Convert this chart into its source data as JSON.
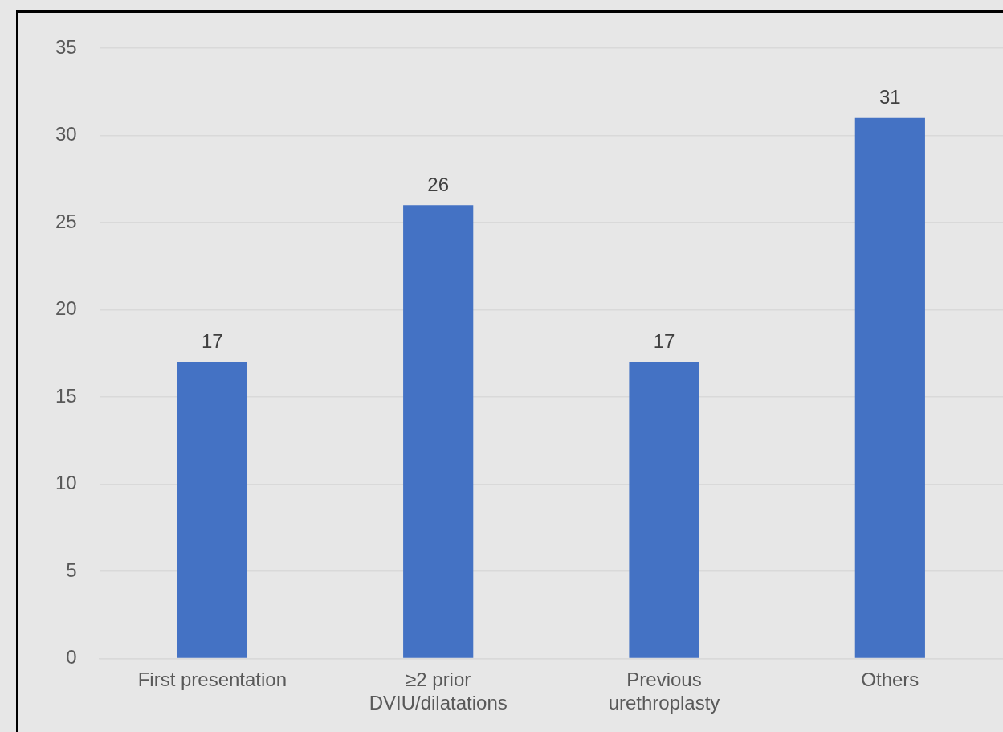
{
  "chart_data": {
    "type": "bar",
    "categories": [
      "First presentation",
      "≥2 prior DVIU/dilatations",
      "Previous urethroplasty",
      "Others"
    ],
    "values": [
      17,
      26,
      17,
      31
    ],
    "color": "#4472c4",
    "ylim": [
      0,
      35
    ],
    "yticks": [
      0,
      5,
      10,
      15,
      20,
      25,
      30,
      35
    ],
    "grid": "y",
    "data_labels": true,
    "legend": false
  }
}
